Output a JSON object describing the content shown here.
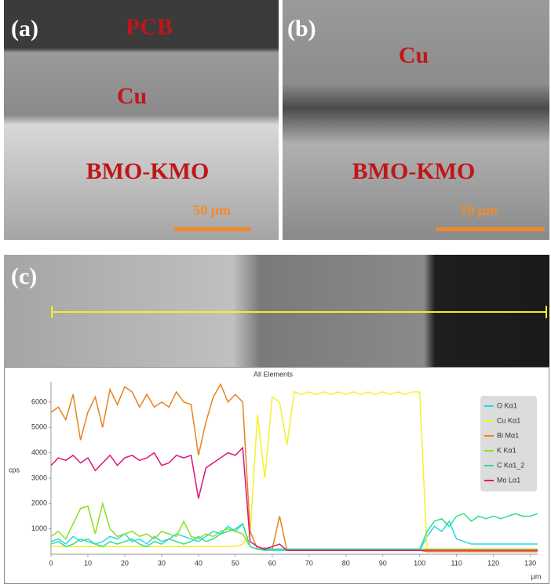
{
  "panels": {
    "a": {
      "label": "(a)",
      "top": "PCB",
      "middle": "Cu",
      "bottom": "BMO-KMO",
      "scale": "50 µm"
    },
    "b": {
      "label": "(b)",
      "middle": "Cu",
      "bottom": "BMO-KMO",
      "scale": "10 µm"
    },
    "c": {
      "label": "(c)"
    }
  },
  "chart_data": {
    "type": "line",
    "title": "All Elements",
    "y_label": "cps",
    "x_label": "µm",
    "xlim": [
      0,
      132
    ],
    "ylim": [
      0,
      6800
    ],
    "xticks": [
      0,
      10,
      20,
      30,
      40,
      50,
      60,
      70,
      80,
      90,
      100,
      110,
      120,
      130
    ],
    "yticks": [
      1000,
      2000,
      3000,
      4000,
      5000,
      6000
    ],
    "legend": "upper-right",
    "x": [
      0,
      2,
      4,
      6,
      8,
      10,
      12,
      14,
      16,
      18,
      20,
      22,
      24,
      26,
      28,
      30,
      32,
      34,
      36,
      38,
      40,
      42,
      44,
      46,
      48,
      50,
      52,
      54,
      56,
      58,
      60,
      62,
      64,
      66,
      68,
      70,
      72,
      74,
      76,
      78,
      80,
      82,
      84,
      86,
      88,
      90,
      92,
      94,
      96,
      98,
      100,
      102,
      104,
      106,
      108,
      110,
      112,
      114,
      116,
      118,
      120,
      122,
      124,
      126,
      128,
      130,
      132
    ],
    "series": [
      {
        "name": "O Kα1",
        "color": "#2ad4f0",
        "values": [
          500,
          600,
          400,
          700,
          500,
          600,
          400,
          500,
          700,
          600,
          800,
          500,
          600,
          400,
          700,
          500,
          600,
          800,
          700,
          600,
          500,
          700,
          900,
          800,
          1100,
          900,
          1200,
          300,
          200,
          150,
          150,
          150,
          150,
          150,
          150,
          150,
          150,
          150,
          150,
          150,
          150,
          150,
          150,
          150,
          150,
          150,
          150,
          150,
          150,
          150,
          150,
          700,
          1100,
          900,
          1300,
          600,
          500,
          400,
          400,
          400,
          400,
          400,
          400,
          400,
          400,
          400,
          400
        ]
      },
      {
        "name": "Cu Kα1",
        "color": "#f2f22a",
        "values": [
          300,
          300,
          300,
          300,
          300,
          300,
          300,
          300,
          300,
          300,
          300,
          300,
          300,
          300,
          300,
          300,
          300,
          300,
          300,
          300,
          300,
          300,
          300,
          300,
          300,
          300,
          400,
          800,
          5500,
          3000,
          6200,
          6000,
          4300,
          6400,
          6300,
          6400,
          6300,
          6400,
          6300,
          6400,
          6300,
          6400,
          6300,
          6400,
          6300,
          6400,
          6300,
          6400,
          6300,
          6400,
          6400,
          200,
          200,
          200,
          200,
          200,
          200,
          200,
          200,
          200,
          200,
          200,
          200,
          200,
          200,
          200,
          200
        ]
      },
      {
        "name": "Bi Mα1",
        "color": "#e8821e",
        "values": [
          5600,
          5800,
          5300,
          6300,
          4500,
          5600,
          6200,
          5000,
          6500,
          5900,
          6600,
          6400,
          5800,
          6300,
          5800,
          6000,
          5800,
          6400,
          6000,
          5900,
          3900,
          5200,
          6200,
          6700,
          6000,
          6300,
          6000,
          900,
          200,
          250,
          200,
          1500,
          150,
          150,
          150,
          150,
          150,
          150,
          150,
          150,
          150,
          150,
          150,
          150,
          150,
          150,
          150,
          150,
          150,
          150,
          150,
          100,
          100,
          100,
          100,
          100,
          100,
          100,
          100,
          100,
          100,
          100,
          100,
          100,
          100,
          100,
          100
        ]
      },
      {
        "name": "K Kα1",
        "color": "#8ede1e",
        "values": [
          700,
          900,
          600,
          1200,
          1800,
          1900,
          800,
          2000,
          1000,
          700,
          800,
          900,
          700,
          800,
          600,
          900,
          800,
          700,
          1300,
          700,
          600,
          800,
          700,
          900,
          1000,
          900,
          800,
          300,
          200,
          200,
          200,
          200,
          200,
          200,
          200,
          200,
          200,
          200,
          200,
          200,
          200,
          200,
          200,
          200,
          200,
          200,
          200,
          200,
          200,
          200,
          200,
          200,
          200,
          200,
          200,
          200,
          200,
          200,
          200,
          200,
          200,
          200,
          200,
          200,
          200,
          200,
          200
        ]
      },
      {
        "name": "C Kα1_2",
        "color": "#2ee08a",
        "values": [
          400,
          500,
          300,
          400,
          600,
          500,
          400,
          300,
          500,
          400,
          500,
          600,
          400,
          300,
          500,
          400,
          600,
          500,
          400,
          500,
          700,
          500,
          600,
          800,
          900,
          1000,
          1200,
          300,
          200,
          200,
          200,
          200,
          200,
          200,
          200,
          200,
          200,
          200,
          200,
          200,
          200,
          200,
          200,
          200,
          200,
          200,
          200,
          200,
          200,
          200,
          200,
          900,
          1300,
          1400,
          1100,
          1500,
          1600,
          1300,
          1500,
          1400,
          1500,
          1400,
          1500,
          1600,
          1500,
          1500,
          1600
        ]
      },
      {
        "name": "Mo Lα1",
        "color": "#dc1478",
        "values": [
          3500,
          3800,
          3700,
          3900,
          3600,
          3800,
          3300,
          3600,
          3900,
          3500,
          3800,
          3900,
          3700,
          3800,
          4000,
          3500,
          3600,
          3900,
          3800,
          3900,
          2200,
          3400,
          3600,
          3800,
          4000,
          3900,
          4200,
          500,
          300,
          200,
          300,
          400,
          150,
          150,
          150,
          150,
          150,
          150,
          150,
          150,
          150,
          150,
          150,
          150,
          150,
          150,
          150,
          150,
          150,
          150,
          150,
          150,
          150,
          150,
          150,
          150,
          150,
          150,
          150,
          150,
          150,
          150,
          150,
          150,
          150,
          150,
          150
        ]
      }
    ]
  }
}
